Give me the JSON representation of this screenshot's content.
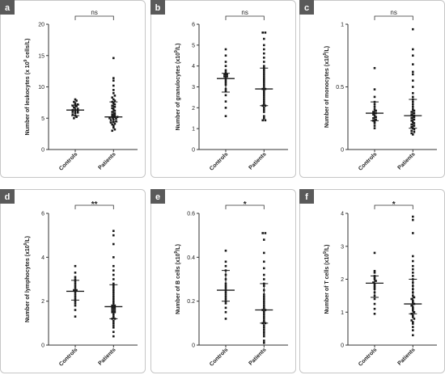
{
  "chart_data": [
    {
      "panel": "a",
      "type": "scatter",
      "ylabel": "Number of leukocytes (x 10^9 cells/L)",
      "ylim": [
        0,
        20
      ],
      "yticks": [
        0,
        5,
        10,
        15,
        20
      ],
      "categories": [
        "Controls",
        "Patients"
      ],
      "significance": "ns",
      "series": [
        {
          "name": "Controls",
          "median": 6.3,
          "q1": 5.4,
          "q3": 7.1,
          "values": [
            5.0,
            5.2,
            5.4,
            5.6,
            5.8,
            5.9,
            6.0,
            6.1,
            6.2,
            6.3,
            6.4,
            6.5,
            6.7,
            6.9,
            7.0,
            7.1,
            7.2,
            7.4,
            7.6,
            7.8,
            8.0
          ]
        },
        {
          "name": "Patients",
          "median": 5.2,
          "q1": 4.4,
          "q3": 7.6,
          "values": [
            3.0,
            3.2,
            3.5,
            3.8,
            4.0,
            4.1,
            4.3,
            4.4,
            4.5,
            4.7,
            4.8,
            4.9,
            5.0,
            5.1,
            5.2,
            5.2,
            5.3,
            5.5,
            5.6,
            5.8,
            6.0,
            6.2,
            6.4,
            6.6,
            6.8,
            7.0,
            7.2,
            7.4,
            7.6,
            7.8,
            8.0,
            8.3,
            8.6,
            9.0,
            9.5,
            10.2,
            11.0,
            11.4,
            14.6
          ]
        }
      ]
    },
    {
      "panel": "b",
      "type": "scatter",
      "ylabel": "Number of granulocytes (x10^9/L)",
      "ylim": [
        0,
        6
      ],
      "yticks": [
        0,
        1,
        2,
        3,
        4,
        5,
        6
      ],
      "categories": [
        "Controls",
        "Patients"
      ],
      "significance": "ns",
      "series": [
        {
          "name": "Controls",
          "median": 3.4,
          "q1": 2.75,
          "q3": 3.65,
          "values": [
            1.6,
            2.0,
            2.3,
            2.6,
            2.8,
            2.9,
            3.1,
            3.2,
            3.3,
            3.4,
            3.5,
            3.5,
            3.6,
            3.6,
            3.7,
            3.8,
            4.0,
            4.2,
            4.5,
            4.8
          ]
        },
        {
          "name": "Patients",
          "median": 2.9,
          "q1": 2.1,
          "q3": 3.9,
          "values": [
            1.4,
            1.4,
            1.5,
            1.6,
            1.8,
            1.9,
            2.0,
            2.1,
            2.1,
            2.2,
            2.3,
            2.4,
            2.5,
            2.6,
            2.7,
            2.8,
            2.9,
            2.9,
            3.0,
            3.1,
            3.2,
            3.3,
            3.4,
            3.5,
            3.6,
            3.7,
            3.8,
            3.9,
            4.0,
            4.2,
            4.4,
            4.6,
            4.8,
            5.0,
            5.3,
            5.6,
            5.6
          ]
        }
      ]
    },
    {
      "panel": "c",
      "type": "scatter",
      "ylabel": "Number of monocytes (x10^9/L)",
      "ylim": [
        0,
        1.0
      ],
      "yticks": [
        0.0,
        0.5,
        1.0
      ],
      "categories": [
        "Controls",
        "Patients"
      ],
      "significance": "ns",
      "series": [
        {
          "name": "Controls",
          "median": 0.29,
          "q1": 0.23,
          "q3": 0.38,
          "values": [
            0.17,
            0.19,
            0.21,
            0.22,
            0.23,
            0.24,
            0.25,
            0.26,
            0.27,
            0.28,
            0.29,
            0.3,
            0.31,
            0.32,
            0.34,
            0.36,
            0.38,
            0.42,
            0.48,
            0.65
          ]
        },
        {
          "name": "Patients",
          "median": 0.27,
          "q1": 0.17,
          "q3": 0.4,
          "values": [
            0.12,
            0.13,
            0.14,
            0.15,
            0.16,
            0.17,
            0.18,
            0.19,
            0.2,
            0.21,
            0.22,
            0.23,
            0.24,
            0.25,
            0.26,
            0.27,
            0.27,
            0.28,
            0.29,
            0.3,
            0.31,
            0.32,
            0.34,
            0.36,
            0.38,
            0.4,
            0.42,
            0.45,
            0.5,
            0.55,
            0.6,
            0.62,
            0.68,
            0.75,
            0.8,
            0.96
          ]
        }
      ]
    },
    {
      "panel": "d",
      "type": "scatter",
      "ylabel": "Number of lymphocytes (x10^9/L)",
      "ylim": [
        0,
        6
      ],
      "yticks": [
        0,
        2,
        4,
        6
      ],
      "categories": [
        "Controls",
        "Patients"
      ],
      "significance": "**",
      "series": [
        {
          "name": "Controls",
          "median": 2.45,
          "q1": 2.05,
          "q3": 2.95,
          "values": [
            1.3,
            1.6,
            1.8,
            1.9,
            2.0,
            2.1,
            2.2,
            2.3,
            2.4,
            2.5,
            2.5,
            2.6,
            2.7,
            2.8,
            2.9,
            3.0,
            3.1,
            3.3,
            3.6
          ]
        },
        {
          "name": "Patients",
          "median": 1.75,
          "q1": 1.2,
          "q3": 2.75,
          "values": [
            0.4,
            0.6,
            0.8,
            0.9,
            1.0,
            1.1,
            1.2,
            1.2,
            1.3,
            1.4,
            1.5,
            1.5,
            1.6,
            1.6,
            1.7,
            1.7,
            1.8,
            1.8,
            1.9,
            2.0,
            2.1,
            2.2,
            2.3,
            2.4,
            2.5,
            2.6,
            2.7,
            2.8,
            3.0,
            3.2,
            3.4,
            3.6,
            4.0,
            4.6,
            5.0,
            5.2
          ]
        }
      ]
    },
    {
      "panel": "e",
      "type": "scatter",
      "ylabel": "Number of B cells (x10^9/L)",
      "ylim": [
        0,
        0.6
      ],
      "yticks": [
        0.0,
        0.2,
        0.4,
        0.6
      ],
      "categories": [
        "Controls",
        "Patients"
      ],
      "significance": "*",
      "series": [
        {
          "name": "Controls",
          "median": 0.25,
          "q1": 0.2,
          "q3": 0.34,
          "values": [
            0.12,
            0.15,
            0.17,
            0.19,
            0.2,
            0.21,
            0.22,
            0.23,
            0.24,
            0.25,
            0.26,
            0.27,
            0.28,
            0.3,
            0.32,
            0.34,
            0.36,
            0.38,
            0.43
          ]
        },
        {
          "name": "Patients",
          "median": 0.16,
          "q1": 0.1,
          "q3": 0.28,
          "values": [
            0.01,
            0.02,
            0.04,
            0.05,
            0.06,
            0.07,
            0.08,
            0.09,
            0.1,
            0.1,
            0.11,
            0.12,
            0.13,
            0.14,
            0.15,
            0.16,
            0.16,
            0.17,
            0.18,
            0.19,
            0.2,
            0.21,
            0.22,
            0.23,
            0.25,
            0.27,
            0.28,
            0.3,
            0.32,
            0.35,
            0.38,
            0.42,
            0.48,
            0.51,
            0.51
          ]
        }
      ]
    },
    {
      "panel": "f",
      "type": "scatter",
      "ylabel": "Number of T cells (x10^9/L)",
      "ylim": [
        0,
        4
      ],
      "yticks": [
        0,
        1,
        2,
        3,
        4
      ],
      "categories": [
        "Controls",
        "Patients"
      ],
      "significance": "*",
      "series": [
        {
          "name": "Controls",
          "median": 1.88,
          "q1": 1.45,
          "q3": 2.1,
          "values": [
            0.95,
            1.1,
            1.25,
            1.4,
            1.5,
            1.6,
            1.7,
            1.75,
            1.8,
            1.85,
            1.9,
            1.95,
            2.0,
            2.05,
            2.1,
            2.2,
            2.25,
            2.8
          ]
        },
        {
          "name": "Patients",
          "median": 1.25,
          "q1": 0.95,
          "q3": 2.0,
          "values": [
            0.3,
            0.45,
            0.55,
            0.65,
            0.7,
            0.75,
            0.8,
            0.85,
            0.9,
            0.95,
            1.0,
            1.05,
            1.1,
            1.15,
            1.2,
            1.25,
            1.3,
            1.35,
            1.4,
            1.45,
            1.5,
            1.6,
            1.7,
            1.8,
            1.9,
            2.0,
            2.1,
            2.2,
            2.3,
            2.4,
            2.55,
            2.7,
            3.4,
            3.8,
            3.9
          ]
        }
      ]
    }
  ]
}
